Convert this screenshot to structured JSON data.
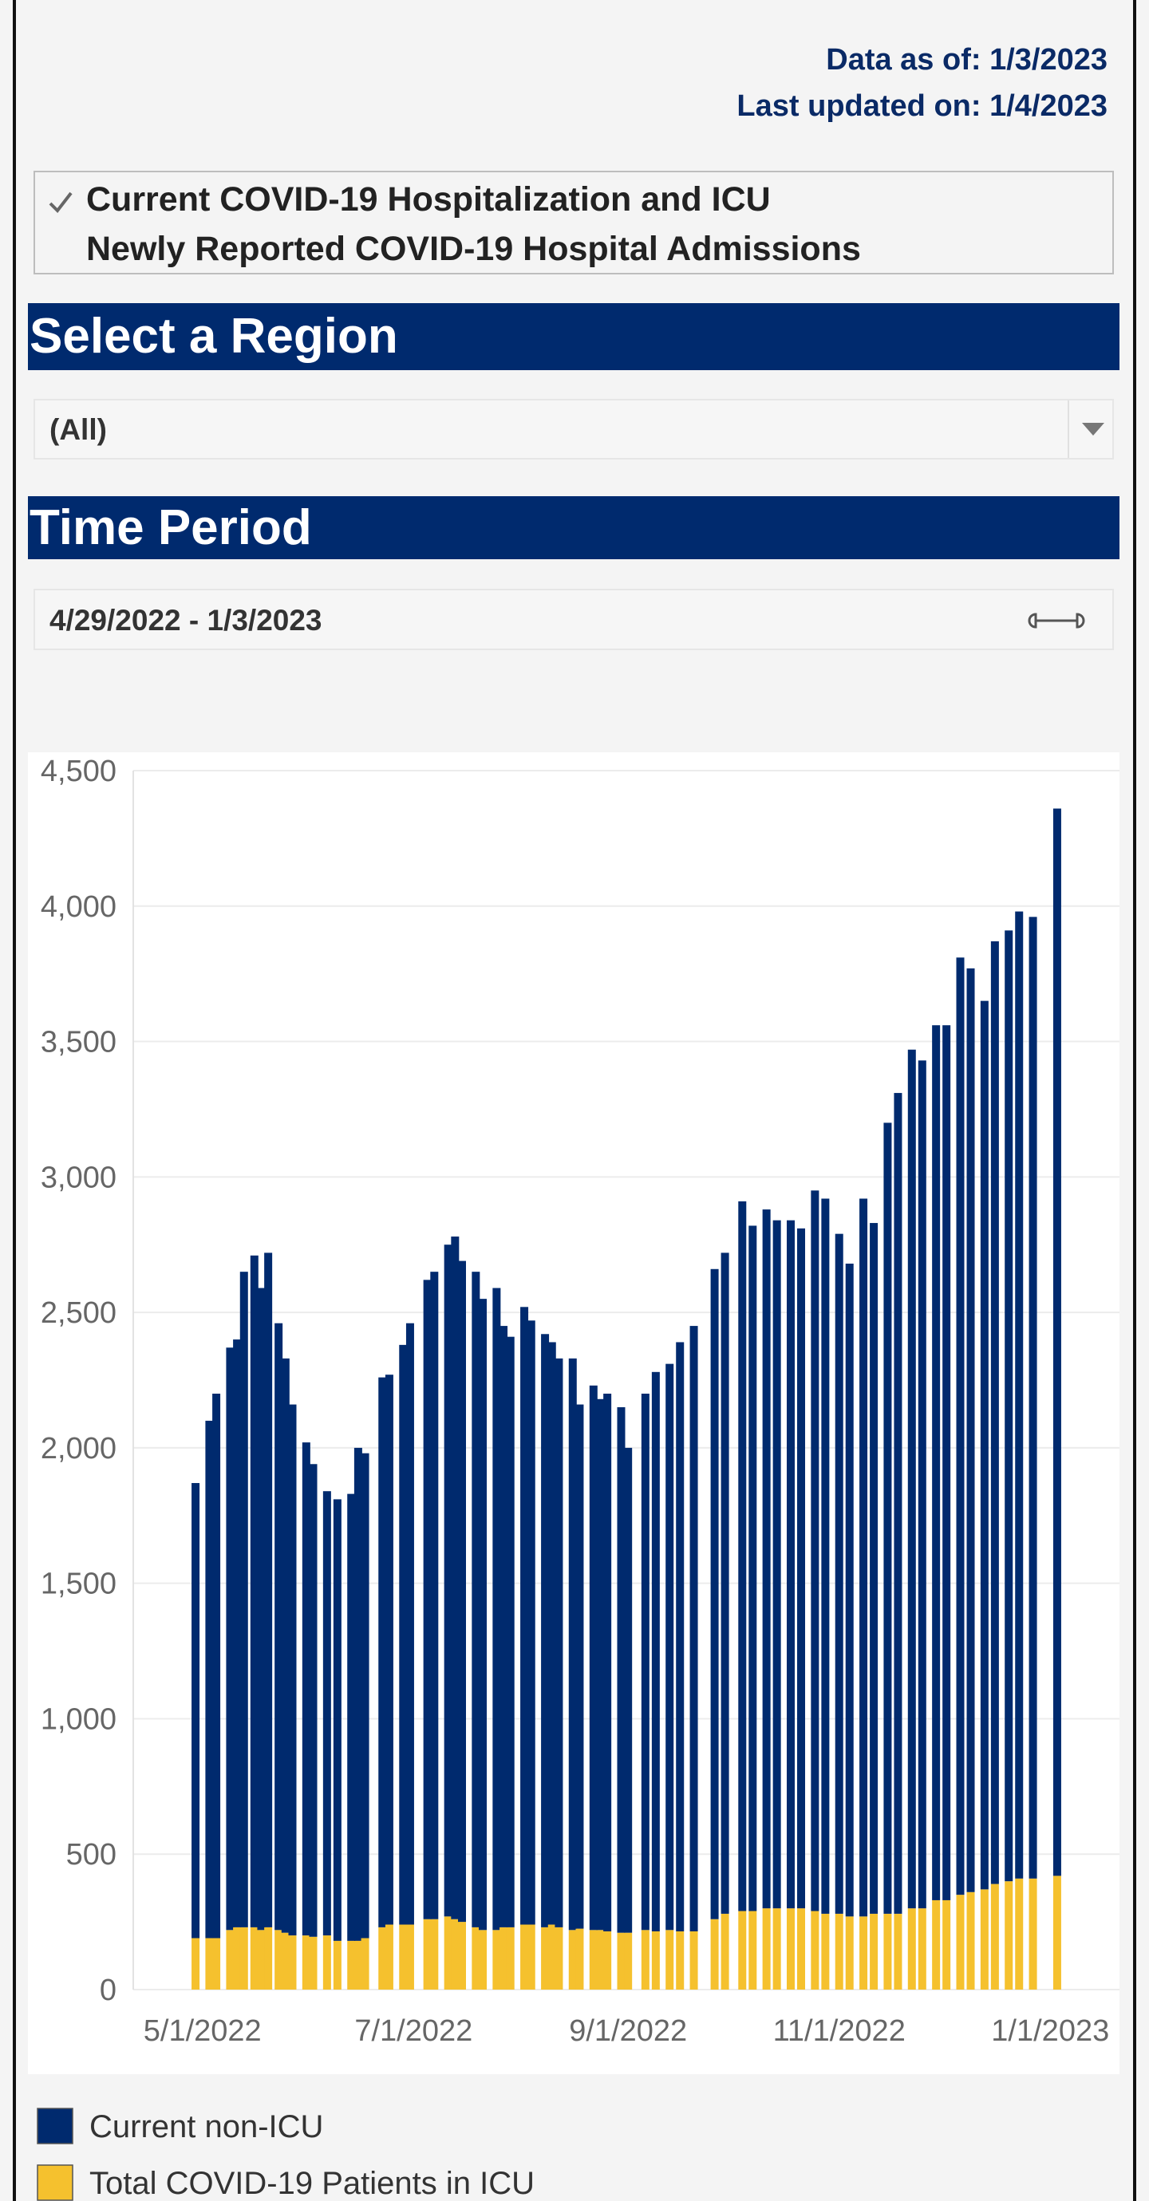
{
  "header": {
    "data_as_of": "Data as of: 1/3/2023",
    "last_updated": "Last updated on: 1/4/2023"
  },
  "menu": [
    "Current COVID-19 Hospitalization and ICU",
    "Newly Reported COVID-19 Hospital Admissions"
  ],
  "region": {
    "title": "Select a Region",
    "value": "(All)"
  },
  "time_period": {
    "title": "Time Period",
    "value": "4/29/2022 - 1/3/2023"
  },
  "chart_data": {
    "type": "bar",
    "stacked": true,
    "x": [
      "4/29/2022",
      "5/3/2022",
      "5/5/2022",
      "5/9/2022",
      "5/11/2022",
      "5/13/2022",
      "5/16/2022",
      "5/18/2022",
      "5/20/2022",
      "5/23/2022",
      "5/25/2022",
      "5/27/2022",
      "5/31/2022",
      "6/2/2022",
      "6/6/2022",
      "6/9/2022",
      "6/13/2022",
      "6/15/2022",
      "6/17/2022",
      "6/22/2022",
      "6/24/2022",
      "6/28/2022",
      "6/30/2022",
      "7/5/2022",
      "7/7/2022",
      "7/11/2022",
      "7/13/2022",
      "7/15/2022",
      "7/19/2022",
      "7/21/2022",
      "7/25/2022",
      "7/27/2022",
      "7/29/2022",
      "8/2/2022",
      "8/4/2022",
      "8/8/2022",
      "8/10/2022",
      "8/12/2022",
      "8/16/2022",
      "8/18/2022",
      "8/22/2022",
      "8/24/2022",
      "8/26/2022",
      "8/30/2022",
      "9/1/2022",
      "9/6/2022",
      "9/9/2022",
      "9/13/2022",
      "9/16/2022",
      "9/20/2022",
      "9/26/2022",
      "9/29/2022",
      "10/4/2022",
      "10/7/2022",
      "10/11/2022",
      "10/14/2022",
      "10/18/2022",
      "10/21/2022",
      "10/25/2022",
      "10/28/2022",
      "11/1/2022",
      "11/4/2022",
      "11/8/2022",
      "11/11/2022",
      "11/15/2022",
      "11/18/2022",
      "11/22/2022",
      "11/25/2022",
      "11/29/2022",
      "12/2/2022",
      "12/6/2022",
      "12/9/2022",
      "12/13/2022",
      "12/16/2022",
      "12/20/2022",
      "12/23/2022",
      "12/27/2022",
      "1/3/2023"
    ],
    "series": [
      {
        "name": "Total COVID-19 Patients in ICU",
        "color": "#f5c12e",
        "values": [
          190,
          190,
          190,
          220,
          230,
          230,
          230,
          220,
          230,
          220,
          210,
          200,
          200,
          195,
          200,
          180,
          180,
          180,
          190,
          230,
          240,
          240,
          240,
          260,
          260,
          270,
          260,
          250,
          230,
          220,
          220,
          230,
          230,
          240,
          240,
          230,
          240,
          230,
          220,
          225,
          220,
          220,
          215,
          210,
          210,
          220,
          215,
          220,
          215,
          215,
          260,
          280,
          290,
          290,
          300,
          300,
          300,
          300,
          290,
          280,
          280,
          270,
          270,
          280,
          280,
          280,
          300,
          300,
          330,
          330,
          350,
          360,
          370,
          390,
          400,
          410,
          410,
          420
        ]
      },
      {
        "name": "Current non-ICU",
        "color": "#002a6e",
        "values": [
          1680,
          1910,
          2010,
          2150,
          2170,
          2420,
          2480,
          2370,
          2490,
          2240,
          2120,
          1960,
          1820,
          1745,
          1640,
          1630,
          1650,
          1820,
          1790,
          2030,
          2030,
          2140,
          2220,
          2360,
          2390,
          2480,
          2520,
          2440,
          2420,
          2330,
          2370,
          2220,
          2180,
          2280,
          2230,
          2190,
          2150,
          2100,
          2110,
          1935,
          2010,
          1960,
          1985,
          1940,
          1790,
          1980,
          2065,
          2090,
          2175,
          2235,
          2400,
          2440,
          2620,
          2530,
          2580,
          2540,
          2540,
          2510,
          2660,
          2640,
          2510,
          2410,
          2650,
          2550,
          2920,
          3030,
          3170,
          3130,
          3230,
          3230,
          3460,
          3410,
          3280,
          3480,
          3510,
          3570,
          3550,
          3940
        ]
      }
    ],
    "xlim": [
      "4/11/2022",
      "1/21/2023"
    ],
    "xticks": [
      "5/1/2022",
      "7/1/2022",
      "9/1/2022",
      "11/1/2022",
      "1/1/2023"
    ],
    "ylim": [
      0,
      4500
    ],
    "yticks": [
      0,
      {
        "value": 500,
        "label": "500"
      },
      {
        "value": 1000,
        "label": "1,000"
      },
      {
        "value": 1500,
        "label": "1,500"
      },
      {
        "value": 2000,
        "label": "2,000"
      },
      {
        "value": 2500,
        "label": "2,500"
      },
      {
        "value": 3000,
        "label": "3,000"
      },
      {
        "value": 3500,
        "label": "3,500"
      },
      {
        "value": 4000,
        "label": "4,000"
      },
      {
        "value": 4500,
        "label": "4,500"
      }
    ],
    "grid": true
  }
}
